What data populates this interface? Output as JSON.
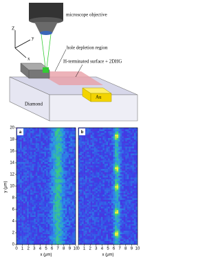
{
  "diagram": {
    "objective_label": "microscope objective",
    "axis_z": "Z",
    "axis_y": "y",
    "axis_x": "x",
    "depletion_label": "hole depletion region",
    "surface_label": "H-terminated surface + 2DHG",
    "electrode_label": "Au",
    "substrate_label": "Diamond"
  },
  "maps": {
    "y_label": "y (μm)",
    "ylim": [
      0,
      20
    ],
    "yticks": [
      0,
      2,
      4,
      6,
      8,
      10,
      12,
      14,
      16,
      18,
      20
    ],
    "panels": [
      {
        "label": "a",
        "x_label": "x (μm)",
        "xlim": [
          0,
          10
        ],
        "xticks": [
          0,
          1,
          2,
          3,
          4,
          5,
          6,
          7,
          8,
          9,
          10
        ]
      },
      {
        "label": "b",
        "x_label": "x (μm)",
        "xlim": [
          0,
          10
        ],
        "xticks": [
          0,
          1,
          2,
          3,
          4,
          5,
          6,
          7,
          8,
          9,
          10
        ]
      }
    ]
  }
}
